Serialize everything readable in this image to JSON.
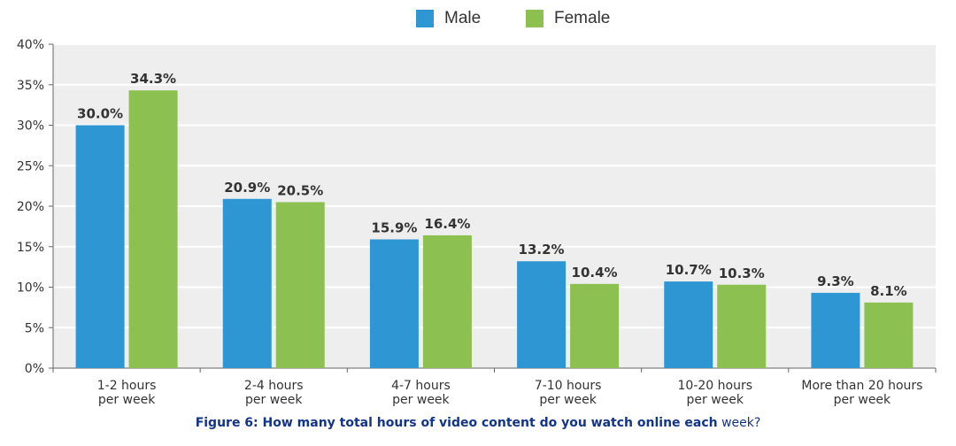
{
  "colors": {
    "male": "#2e96d2",
    "female": "#8cc152",
    "plot_bg": "#eeeeee",
    "grid": "#ffffff",
    "axis": "#666666",
    "caption": "#12348a"
  },
  "chart_data": {
    "type": "bar",
    "categories": [
      [
        "1-2 hours",
        "per week"
      ],
      [
        "2-4 hours",
        "per week"
      ],
      [
        "4-7 hours",
        "per week"
      ],
      [
        "7-10 hours",
        "per week"
      ],
      [
        "10-20 hours",
        "per week"
      ],
      [
        "More than 20 hours",
        "per week"
      ]
    ],
    "series": [
      {
        "name": "Male",
        "values": [
          30.0,
          20.9,
          15.9,
          13.2,
          10.7,
          9.3
        ]
      },
      {
        "name": "Female",
        "values": [
          34.3,
          20.5,
          16.4,
          10.4,
          10.3,
          8.1
        ]
      }
    ],
    "data_labels": [
      [
        "30.0%",
        "20.9%",
        "15.9%",
        "13.2%",
        "10.7%",
        "9.3%"
      ],
      [
        "34.3%",
        "20.5%",
        "16.4%",
        "10.4%",
        "10.3%",
        "8.1%"
      ]
    ],
    "ylim": [
      0,
      40
    ],
    "yticks": [
      0,
      5,
      10,
      15,
      20,
      25,
      30,
      35,
      40
    ],
    "ytick_labels": [
      "0%",
      "5%",
      "10%",
      "15%",
      "20%",
      "25%",
      "30%",
      "35%",
      "40%"
    ],
    "grid": true,
    "legend_position": "top-center"
  },
  "legend": {
    "male_label": "Male",
    "female_label": "Female"
  },
  "caption": {
    "bold_part": "Figure 6: How many total hours of video content do you watch online each",
    "normal_part": "week?"
  }
}
